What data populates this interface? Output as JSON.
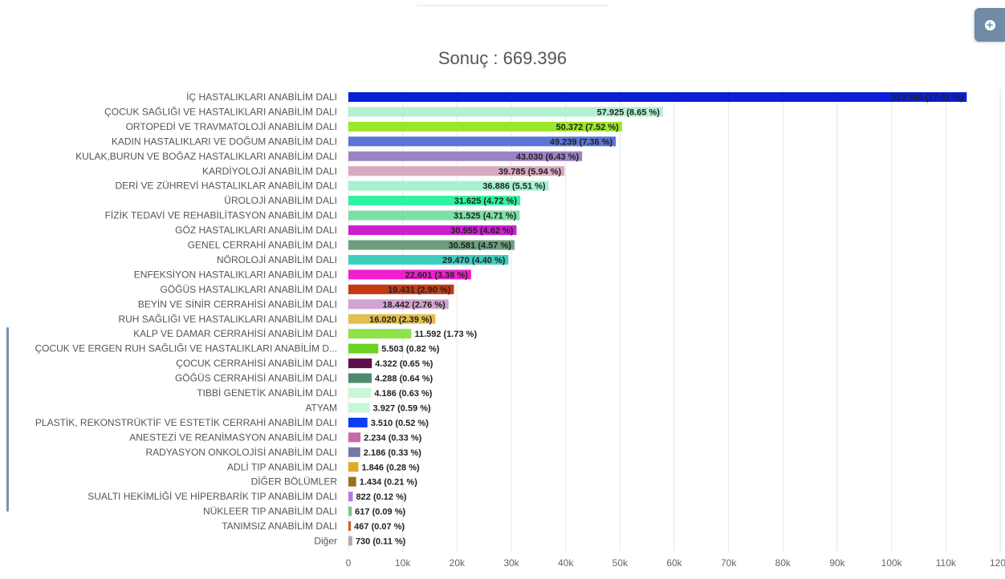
{
  "chart_data": {
    "type": "bar",
    "orientation": "horizontal",
    "title": "Sonuç : 669.396",
    "xlim": [
      0,
      120000
    ],
    "xticks": [
      "0",
      "10k",
      "20k",
      "30k",
      "40k",
      "50k",
      "60k",
      "70k",
      "80k",
      "90k",
      "100k",
      "110k",
      "120k"
    ],
    "grid": true,
    "categories": [
      "İÇ HASTALIKLARI ANABİLİM DALI",
      "ÇOCUK SAĞLIĞI VE HASTALIKLARI ANABİLİM DALI",
      "ORTOPEDİ VE TRAVMATOLOJİ ANABİLİM DALI",
      "KADIN HASTALIKLARI VE DOĞUM ANABİLİM DALI",
      "KULAK,BURUN VE BOĞAZ HASTALIKLARI ANABİLİM DALI",
      "KARDİYOLOJİ ANABİLİM DALI",
      "DERİ VE ZÜHREVİ HASTALIKLAR ANABİLİM DALI",
      "ÜROLOJİ ANABİLİM DALI",
      "FİZİK TEDAVİ VE REHABİLİTASYON ANABİLİM DALI",
      "GÖZ HASTALIKLARI ANABİLİM DALI",
      "GENEL CERRAHİ ANABİLİM DALI",
      "NÖROLOJİ ANABİLİM DALI",
      "ENFEKSİYON HASTALIKLARI ANABİLİM DALI",
      "GÖĞÜS HASTALIKLARI ANABİLİM DALI",
      "BEYİN VE SİNİR CERRAHİSİ ANABİLİM DALI",
      "RUH SAĞLIĞI VE HASTALIKLARI ANABİLİM DALI",
      "KALP VE DAMAR CERRAHİSİ ANABİLİM DALI",
      "ÇOCUK VE ERGEN RUH SAĞLIĞI VE HASTALIKLARI ANABİLİM D...",
      "ÇOCUK CERRAHİSİ ANABİLİM DALI",
      "GÖĞÜS CERRAHİSİ ANABİLİM DALI",
      "TIBBİ GENETİK ANABİLİM DALI",
      "ATYAM",
      "PLASTİK, REKONSTRÜKTİF VE ESTETİK CERRAHİ ANABİLİM DALI",
      "ANESTEZİ VE REANİMASYON ANABİLİM DALI",
      "RADYASYON ONKOLOJİSİ ANABİLİM DALI",
      "ADLİ TIP ANABİLİM DALI",
      "DİĞER BÖLÜMLER",
      "SUALTI HEKİMLİĞİ VE HİPERBARİK TIP ANABİLİM DALI",
      "NÜKLEER TIP ANABİLİM DALI",
      "TANIMSIZ ANABİLİM DALI",
      "Diğer"
    ],
    "values": [
      113845,
      57925,
      50372,
      49239,
      43030,
      39785,
      36886,
      31625,
      31525,
      30955,
      30581,
      29470,
      22601,
      19431,
      18442,
      16020,
      11592,
      5503,
      4322,
      4288,
      4186,
      3927,
      3510,
      2234,
      2186,
      1846,
      1434,
      822,
      617,
      467,
      730
    ],
    "value_labels": [
      "113.845 (17.01 %)",
      "57.925 (8.65 %)",
      "50.372 (7.52 %)",
      "49.239 (7.36 %)",
      "43.030 (6.43 %)",
      "39.785 (5.94 %)",
      "36.886 (5.51 %)",
      "31.625 (4.72 %)",
      "31.525 (4.71 %)",
      "30.955 (4.62 %)",
      "30.581 (4.57 %)",
      "29.470 (4.40 %)",
      "22.601 (3.38 %)",
      "19.431 (2.90 %)",
      "18.442 (2.76 %)",
      "16.020 (2.39 %)",
      "11.592 (1.73 %)",
      "5.503 (0.82 %)",
      "4.322 (0.65 %)",
      "4.288 (0.64 %)",
      "4.186 (0.63 %)",
      "3.927 (0.59 %)",
      "3.510 (0.52 %)",
      "2.234 (0.33 %)",
      "2.186 (0.33 %)",
      "1.846 (0.28 %)",
      "1.434 (0.21 %)",
      "822 (0.12 %)",
      "617 (0.09 %)",
      "467 (0.07 %)",
      "730 (0.11 %)"
    ],
    "colors": [
      "#0a1fd6",
      "#b4f0d2",
      "#9ae62a",
      "#5b74d6",
      "#9b82c4",
      "#d7a9be",
      "#a6f1d0",
      "#2ef3a0",
      "#7ee0a6",
      "#cc1fd0",
      "#6c9f7e",
      "#3dcdbf",
      "#ef1fcf",
      "#c53a13",
      "#d1a4d0",
      "#e4be50",
      "#8fe24c",
      "#69d41f",
      "#5a1147",
      "#508a6c",
      "#c9f7d6",
      "#c8f7d8",
      "#0a3ef0",
      "#c86aa8",
      "#7a76a2",
      "#e2aa22",
      "#a0701e",
      "#b976e6",
      "#84c488",
      "#d26030",
      "#b8a8b8"
    ],
    "inside_label": [
      true,
      true,
      true,
      true,
      true,
      true,
      true,
      true,
      true,
      true,
      true,
      true,
      true,
      true,
      true,
      true,
      false,
      false,
      false,
      false,
      false,
      false,
      false,
      false,
      false,
      false,
      false,
      false,
      false,
      false,
      false
    ]
  }
}
